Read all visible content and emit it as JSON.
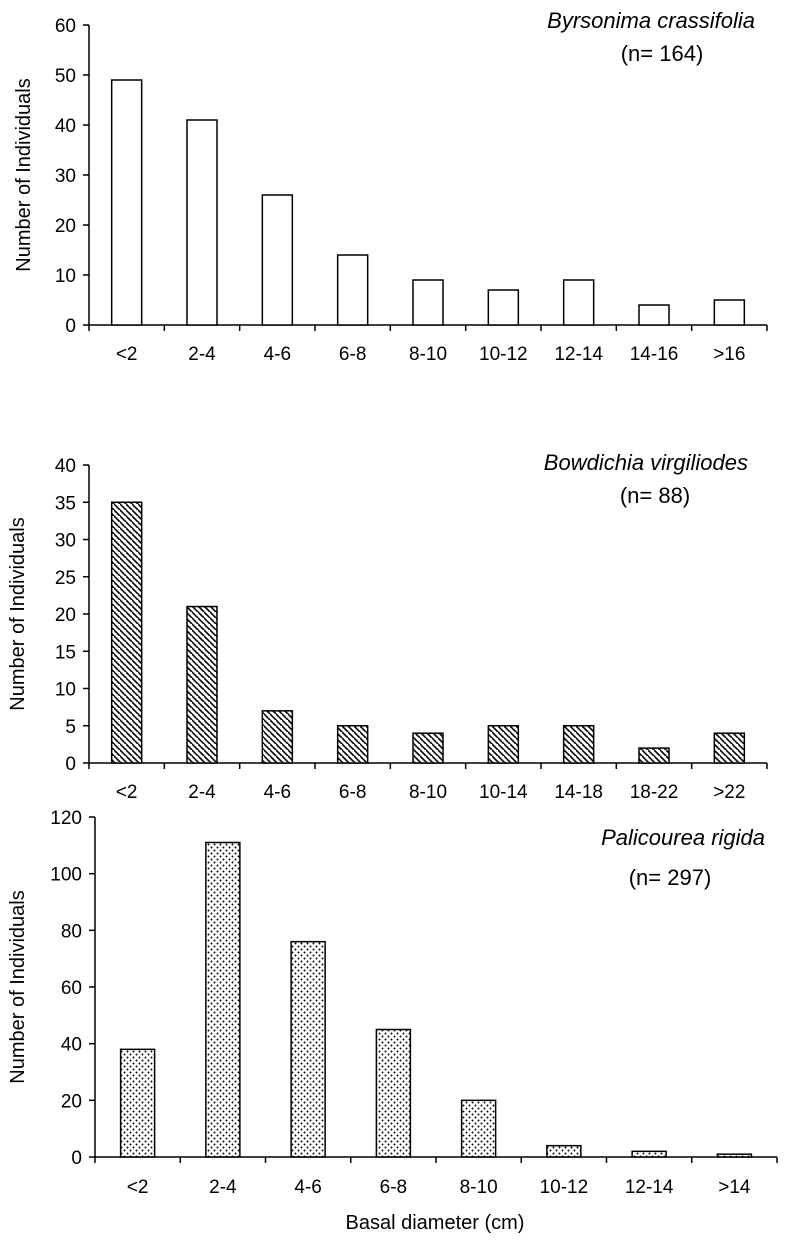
{
  "chart_data": [
    {
      "type": "bar",
      "annotation_title": "Byrsonima crassifolia",
      "annotation_n": "(n= 164)",
      "ylabel": "Number of Individuals",
      "xlabel": "",
      "ylim": [
        0,
        60
      ],
      "yticks": [
        0,
        10,
        20,
        30,
        40,
        50,
        60
      ],
      "categories": [
        "<2",
        "2-4",
        "4-6",
        "6-8",
        "8-10",
        "10-12",
        "12-14",
        "14-16",
        ">16"
      ],
      "values": [
        49,
        41,
        26,
        14,
        9,
        7,
        9,
        4,
        5
      ],
      "fill": "open"
    },
    {
      "type": "bar",
      "annotation_title": "Bowdichia virgiliodes",
      "annotation_n": "(n= 88)",
      "ylabel": "Number of Individuals",
      "xlabel": "",
      "ylim": [
        0,
        40
      ],
      "yticks": [
        0,
        5,
        10,
        15,
        20,
        25,
        30,
        35,
        40
      ],
      "categories": [
        "<2",
        "2-4",
        "4-6",
        "6-8",
        "8-10",
        "10-14",
        "14-18",
        "18-22",
        ">22"
      ],
      "values": [
        35,
        21,
        7,
        5,
        4,
        5,
        5,
        2,
        4
      ],
      "fill": "hatched"
    },
    {
      "type": "bar",
      "annotation_title": "Palicourea rigida",
      "annotation_n": "(n= 297)",
      "ylabel": "Number of Individuals",
      "xlabel": "Basal diameter (cm)",
      "ylim": [
        0,
        120
      ],
      "yticks": [
        0,
        20,
        40,
        60,
        80,
        100,
        120
      ],
      "categories": [
        "<2",
        "2-4",
        "4-6",
        "6-8",
        "8-10",
        "10-12",
        "12-14",
        ">14"
      ],
      "values": [
        38,
        111,
        76,
        45,
        20,
        4,
        2,
        1
      ],
      "fill": "dotted"
    }
  ]
}
